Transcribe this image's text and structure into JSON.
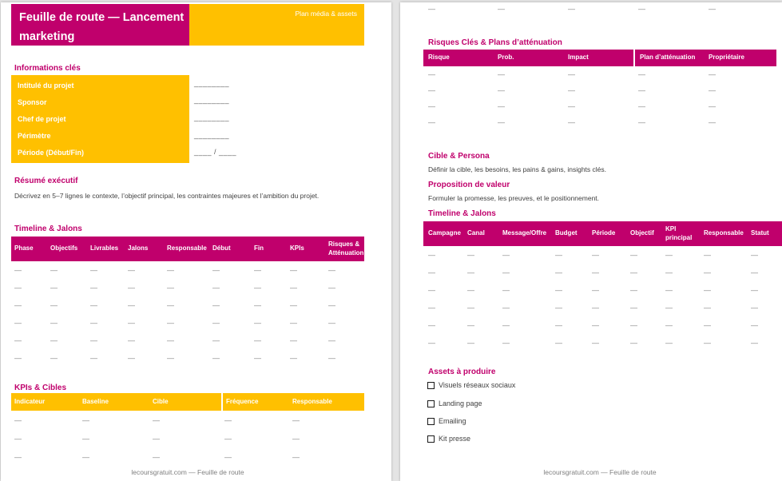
{
  "colors": {
    "magenta": "#C0006C",
    "yellow": "#FFC000",
    "dash": "#7F7F7F",
    "body_text": "#3F3F3F",
    "footer_text": "#7F7F7F"
  },
  "page1": {
    "title": "Feuille de route — Lancement marketing",
    "corner_label": "Plan média & assets",
    "infos": {
      "heading": "Informations clés",
      "fields": [
        {
          "label": "Intitulé du projet",
          "blank": "________"
        },
        {
          "label": "Sponsor",
          "blank": "________"
        },
        {
          "label": "Chef de projet",
          "blank": "________"
        },
        {
          "label": "Périmètre",
          "blank": "________"
        },
        {
          "label": "Période (Début/Fin)",
          "blank": "____ / ____"
        }
      ]
    },
    "resume": {
      "heading": "Résumé exécutif",
      "body": "Décrivez en 5–7 lignes le contexte, l’objectif principal, les contraintes majeures et l’ambition du projet."
    },
    "timeline": {
      "heading": "Timeline & Jalons",
      "table": {
        "header_bg": "#C0006C",
        "columns": [
          "Phase",
          "Objectifs",
          "Livrables",
          "Jalons",
          "Responsable",
          "Début",
          "Fin",
          "KPIs",
          "Risques & Atténuation"
        ],
        "row_count": 6,
        "placeholder": "—"
      }
    },
    "kpis": {
      "heading": "KPIs & Cibles",
      "table": {
        "header_bg": "#FFC000",
        "divider_col": 3,
        "columns": [
          "Indicateur",
          "Baseline",
          "Cible",
          "Fréquence",
          "Responsable"
        ],
        "row_count": 3,
        "placeholder": "—"
      }
    },
    "footer": "lecoursgratuit.com — Feuille de route"
  },
  "page2": {
    "overflow_row": [
      "—",
      "—",
      "—",
      "—",
      "—"
    ],
    "risques": {
      "heading": "Risques Clés & Plans d’atténuation",
      "table": {
        "header_bg": "#C0006C",
        "divider_col": 3,
        "columns": [
          "Risque",
          "Prob.",
          "Impact",
          "Plan d’atténuation",
          "Propriétaire"
        ],
        "row_count": 4,
        "placeholder": "—"
      }
    },
    "cible": {
      "heading": "Cible & Persona",
      "body": "Définir la cible, les besoins, les pains & gains, insights clés."
    },
    "proposition": {
      "heading": "Proposition de valeur",
      "body": "Formuler la promesse, les preuves, et le positionnement."
    },
    "timeline": {
      "heading": "Timeline & Jalons",
      "table": {
        "header_bg": "#C0006C",
        "columns": [
          "Campagne",
          "Canal",
          "Message/Offre",
          "Budget",
          "Période",
          "Objectif",
          "KPI principal",
          "Responsable",
          "Statut"
        ],
        "row_count": 6,
        "placeholder": "—"
      }
    },
    "assets": {
      "heading": "Assets à produire",
      "items": [
        "Visuels réseaux sociaux",
        "Landing page",
        "Emailing",
        "Kit presse"
      ]
    },
    "footer": "lecoursgratuit.com — Feuille de route"
  }
}
